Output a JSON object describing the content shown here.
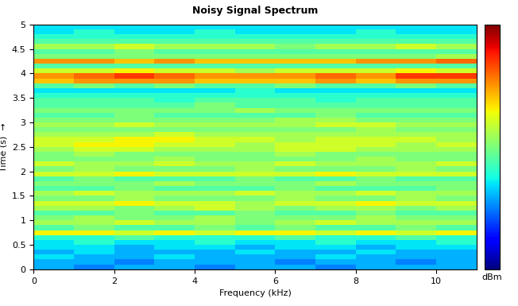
{
  "chart_data": {
    "type": "heatmap",
    "title": "Noisy Signal Spectrum",
    "x_label": "Frequency (kHz)",
    "y_label": "Time (s)  →",
    "xlim": [
      0,
      11
    ],
    "xticks": [
      0,
      2,
      4,
      6,
      8,
      10
    ],
    "ylim": [
      0,
      5
    ],
    "yticks": [
      0,
      0.5,
      1,
      1.5,
      2,
      2.5,
      3,
      3.5,
      4,
      4.5,
      5
    ],
    "grid": false,
    "x": [
      0.5,
      1.5,
      2.5,
      3.5,
      4.5,
      5.5,
      6.5,
      7.5,
      8.5,
      9.5,
      10.5
    ],
    "y": [
      0.05,
      0.15,
      0.25,
      0.35,
      0.45,
      0.55,
      0.65,
      0.75,
      0.85,
      0.95,
      1.05,
      1.15,
      1.25,
      1.35,
      1.45,
      1.55,
      1.65,
      1.75,
      1.85,
      1.95,
      2.05,
      2.15,
      2.25,
      2.35,
      2.45,
      2.55,
      2.65,
      2.75,
      2.85,
      2.95,
      3.05,
      3.15,
      3.25,
      3.35,
      3.45,
      3.55,
      3.65,
      3.75,
      3.85,
      3.95,
      4.05,
      4.15,
      4.25,
      4.35,
      4.45,
      4.55,
      4.65,
      4.75,
      4.85,
      4.95
    ],
    "cells": [
      [
        3,
        2.5,
        3,
        3,
        2.5,
        3,
        3,
        2.5,
        3,
        3,
        3
      ],
      [
        3,
        3,
        2.5,
        3,
        3,
        3,
        2.5,
        3,
        3,
        2.5,
        3
      ],
      [
        3.5,
        3,
        3,
        3.5,
        3,
        3,
        3,
        3.5,
        3,
        3,
        3
      ],
      [
        3,
        3.5,
        3,
        3,
        3,
        3.5,
        3,
        3,
        3.5,
        3,
        3
      ],
      [
        3.5,
        3.5,
        3,
        3.5,
        3.5,
        3,
        3.5,
        3.5,
        3,
        3.5,
        3.5
      ],
      [
        3.5,
        4,
        3.5,
        3.5,
        4,
        3.5,
        3.5,
        4,
        3.5,
        3.5,
        4
      ],
      [
        4,
        4,
        4.5,
        4,
        4,
        4,
        4.5,
        4,
        4,
        4.5,
        4
      ],
      [
        6.5,
        6.5,
        6,
        6.5,
        6,
        6.5,
        6.5,
        6,
        6.5,
        6,
        6.5
      ],
      [
        4.5,
        5,
        4.5,
        4.5,
        5,
        4.5,
        5,
        4.5,
        4.5,
        5,
        4.5
      ],
      [
        5.5,
        5.5,
        6,
        5.5,
        5.5,
        5,
        5.5,
        6,
        5.5,
        5.5,
        5.5
      ],
      [
        5,
        5.5,
        5,
        5,
        5.5,
        5,
        5,
        5,
        5.5,
        5,
        5
      ],
      [
        4.5,
        4.5,
        5,
        4.5,
        4.5,
        5,
        4.5,
        4.5,
        5,
        4.5,
        4.5
      ],
      [
        5.5,
        5.5,
        5,
        5.5,
        6,
        5.5,
        5,
        5.5,
        5.5,
        5,
        5.5
      ],
      [
        6,
        6,
        6.5,
        6,
        6,
        5.5,
        6,
        6,
        6.5,
        6,
        6
      ],
      [
        5,
        5,
        5.5,
        5,
        5,
        5,
        5.5,
        5,
        5,
        5.5,
        5
      ],
      [
        5.5,
        6,
        5.5,
        5.5,
        5.5,
        6,
        5.5,
        5.5,
        6,
        5.5,
        5.5
      ],
      [
        4.5,
        4.5,
        5,
        4.5,
        4.5,
        4.5,
        5,
        4.5,
        4.5,
        4.5,
        5
      ],
      [
        5,
        5,
        5,
        5.5,
        5,
        5,
        5,
        5.5,
        5,
        5,
        5
      ],
      [
        4.5,
        5,
        4.5,
        4.5,
        4.5,
        5,
        4.5,
        4.5,
        5,
        4.5,
        4.5
      ],
      [
        6,
        6,
        6.5,
        6,
        6,
        6,
        6,
        6.5,
        6,
        6,
        6
      ],
      [
        5,
        5.5,
        5,
        5,
        5,
        5.5,
        5,
        5,
        5,
        5.5,
        5
      ],
      [
        6,
        5.5,
        5.5,
        6,
        5.5,
        5.5,
        6,
        5.5,
        5.5,
        5.5,
        6
      ],
      [
        5,
        5,
        5,
        5.5,
        5,
        5,
        5,
        5,
        5.5,
        5,
        5
      ],
      [
        5,
        5.5,
        5,
        5,
        5,
        5,
        5.5,
        5,
        5,
        5,
        5
      ],
      [
        5.5,
        6,
        6,
        5.5,
        5.5,
        5.5,
        6,
        6,
        5.5,
        5.5,
        5.5
      ],
      [
        6,
        6.5,
        6.5,
        6,
        6,
        5.5,
        6,
        6,
        6,
        5.5,
        6
      ],
      [
        6,
        6,
        6.5,
        6.5,
        6,
        6,
        5.5,
        6,
        6,
        6,
        5.5
      ],
      [
        5.5,
        5.5,
        5.5,
        6,
        5.5,
        5.5,
        5.5,
        5.5,
        5.5,
        5.5,
        5.5
      ],
      [
        5,
        5,
        5,
        5,
        5,
        5,
        5,
        5,
        5.5,
        5,
        5
      ],
      [
        5.5,
        5.5,
        6,
        5.5,
        5.5,
        5.5,
        5.5,
        6,
        6,
        5.5,
        5.5
      ],
      [
        5,
        5,
        5,
        5,
        5,
        5,
        5.5,
        5.5,
        5,
        5,
        5
      ],
      [
        4.5,
        4.5,
        5,
        4.5,
        4.5,
        4.5,
        4.5,
        5,
        4.5,
        4.5,
        4.5
      ],
      [
        5,
        5,
        5,
        5,
        5,
        5.5,
        5,
        5,
        5,
        5,
        5
      ],
      [
        4.5,
        4.5,
        4.5,
        4.5,
        5,
        4.5,
        4.5,
        4.5,
        4.5,
        4.5,
        4.5
      ],
      [
        4.5,
        4.5,
        4.5,
        4,
        4.5,
        4.5,
        4.5,
        4,
        4.5,
        4.5,
        4.5
      ],
      [
        4,
        4,
        4,
        4,
        4,
        4,
        4,
        4,
        4,
        4,
        4
      ],
      [
        3.5,
        3.5,
        3.5,
        3.5,
        3.5,
        4,
        3.5,
        3.5,
        3.5,
        3.5,
        3.5
      ],
      [
        4.5,
        5,
        4.5,
        5,
        4.5,
        4.5,
        5,
        4.5,
        4.5,
        5,
        4.5
      ],
      [
        7,
        7.5,
        7.5,
        7.5,
        7,
        7,
        7,
        7.5,
        7,
        7.5,
        7.5
      ],
      [
        7.5,
        8,
        8.5,
        8,
        7.5,
        7.5,
        7.5,
        8,
        7.5,
        8.5,
        8.5
      ],
      [
        6,
        6,
        6.5,
        6,
        6,
        5.5,
        6,
        6,
        6,
        6.5,
        6
      ],
      [
        4.5,
        4.5,
        4.5,
        4.5,
        4.5,
        4.5,
        4.5,
        4.5,
        4.5,
        4.5,
        4.5
      ],
      [
        7.5,
        7.5,
        7,
        7.5,
        7,
        7,
        7,
        7,
        7.5,
        7.5,
        8
      ],
      [
        5,
        5,
        5,
        5,
        5,
        5,
        5,
        5,
        5,
        5,
        5.5
      ],
      [
        4.5,
        4.5,
        5,
        4.5,
        4.5,
        4.5,
        4.5,
        4.5,
        4.5,
        4.5,
        4.5
      ],
      [
        5.5,
        5.5,
        6,
        5.5,
        5.5,
        5.5,
        5,
        5.5,
        5.5,
        6,
        5.5
      ],
      [
        4.5,
        4.5,
        4.5,
        4.5,
        4.5,
        4.5,
        4.5,
        4.5,
        4.5,
        4.5,
        4.5
      ],
      [
        4,
        4,
        4,
        4,
        4,
        4,
        4,
        4,
        4,
        4,
        4
      ],
      [
        3.5,
        4,
        3.5,
        3.5,
        4,
        3.5,
        3.5,
        3.5,
        4,
        3.5,
        3.5
      ],
      [
        3.5,
        3.5,
        3.5,
        3.5,
        3.5,
        3.5,
        3.5,
        3.5,
        3.5,
        3.5,
        3.5
      ]
    ],
    "colorbar": {
      "label": "dBm",
      "range": [
        0,
        10
      ],
      "ticks": []
    }
  }
}
